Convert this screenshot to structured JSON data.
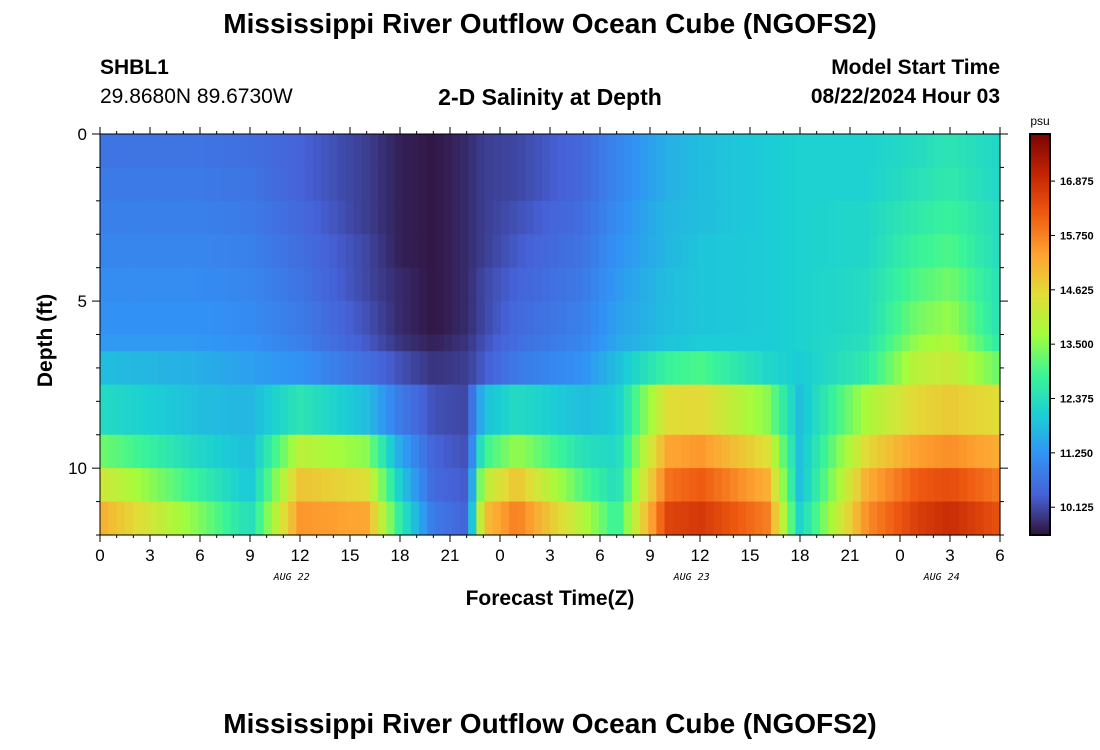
{
  "header": {
    "title": "Mississippi River Outflow Ocean Cube (NGOFS2)",
    "station": "SHBL1",
    "coords": "29.8680N  89.6730W",
    "subtitle": "2-D Salinity at Depth",
    "model_start_label": "Model Start Time",
    "model_start_value": "08/22/2024 Hour 03"
  },
  "footer": {
    "title": "Mississippi River Outflow Ocean Cube (NGOFS2)"
  },
  "chart_data": {
    "type": "heatmap",
    "title": "2-D Salinity at Depth",
    "xlabel": "Forecast Time(Z)",
    "ylabel": "Depth (ft)",
    "x_hours": [
      0,
      54
    ],
    "x_tick_labels": [
      "0",
      "3",
      "6",
      "9",
      "12",
      "15",
      "18",
      "21",
      "0",
      "3",
      "6",
      "9",
      "12",
      "15",
      "18",
      "21",
      "0",
      "3",
      "6"
    ],
    "date_labels": [
      {
        "label": "AUG 22",
        "hour": 11.5
      },
      {
        "label": "AUG 23",
        "hour": 35.5
      },
      {
        "label": "AUG 24",
        "hour": 50.5
      }
    ],
    "ylim": [
      0,
      12
    ],
    "y_ticks": [
      0,
      5,
      10
    ],
    "colorbar": {
      "unit": "psu",
      "range": [
        9.55,
        17.85
      ],
      "ticks": [
        "16.875",
        "15.750",
        "14.625",
        "13.500",
        "12.375",
        "11.250",
        "10.125"
      ]
    },
    "depth_layers_ft": [
      0.5,
      1.5,
      2.5,
      3.5,
      4.5,
      5.5,
      6.5,
      7,
      8.5,
      9.5,
      10.5,
      11.5
    ],
    "layer_breaks_ft": [
      0,
      1,
      2,
      3,
      4,
      5,
      6,
      6.5,
      7.5,
      9,
      10,
      11,
      12
    ],
    "time_keypoints_hours": [
      0,
      6,
      9,
      12,
      16,
      18,
      20,
      22,
      23,
      25,
      29,
      31,
      34,
      36,
      40,
      42,
      46,
      49,
      51,
      54
    ],
    "salinity_psu": [
      [
        10.7,
        10.7,
        10.6,
        10.4,
        10.0,
        9.7,
        9.6,
        9.8,
        10.0,
        10.1,
        10.5,
        11.0,
        11.6,
        11.8,
        12.0,
        12.1,
        12.1,
        12.3,
        12.5,
        12.2
      ],
      [
        10.8,
        10.8,
        10.7,
        10.4,
        10.0,
        9.7,
        9.6,
        9.8,
        10.0,
        10.1,
        10.5,
        11.0,
        11.6,
        11.8,
        12.0,
        12.1,
        12.1,
        12.4,
        12.6,
        12.2
      ],
      [
        10.9,
        10.9,
        10.8,
        10.5,
        10.0,
        9.7,
        9.6,
        9.8,
        10.0,
        10.2,
        10.6,
        11.1,
        11.7,
        11.8,
        12.0,
        12.1,
        12.2,
        12.6,
        12.8,
        12.3
      ],
      [
        11.0,
        11.0,
        10.9,
        10.6,
        10.1,
        9.7,
        9.6,
        9.8,
        10.0,
        10.3,
        10.7,
        11.2,
        11.7,
        11.9,
        12.0,
        12.1,
        12.2,
        12.8,
        13.0,
        12.3
      ],
      [
        11.1,
        11.1,
        11.0,
        10.7,
        10.1,
        9.8,
        9.6,
        9.8,
        10.1,
        10.4,
        10.8,
        11.3,
        11.8,
        11.9,
        12.0,
        12.1,
        12.3,
        13.0,
        13.3,
        12.4
      ],
      [
        11.2,
        11.2,
        11.1,
        10.8,
        10.2,
        9.8,
        9.6,
        9.8,
        10.1,
        10.5,
        10.9,
        11.4,
        11.8,
        11.9,
        12.0,
        12.1,
        12.3,
        13.3,
        13.6,
        12.4
      ],
      [
        11.3,
        11.3,
        11.2,
        10.9,
        10.3,
        9.9,
        9.7,
        9.9,
        10.2,
        10.6,
        11.0,
        11.5,
        11.9,
        12.0,
        12.0,
        12.1,
        12.4,
        13.6,
        13.9,
        12.6
      ],
      [
        11.8,
        11.6,
        11.4,
        11.2,
        10.6,
        10.2,
        9.9,
        10.0,
        10.3,
        10.8,
        11.2,
        11.8,
        12.8,
        13.0,
        12.2,
        12.0,
        12.6,
        14.0,
        14.2,
        13.2
      ],
      [
        12.3,
        11.8,
        11.7,
        12.5,
        11.8,
        10.8,
        10.2,
        10.1,
        11.8,
        12.3,
        11.8,
        12.0,
        14.5,
        14.6,
        13.5,
        11.8,
        13.8,
        14.6,
        14.8,
        14.5
      ],
      [
        13.3,
        12.2,
        11.8,
        14.0,
        13.5,
        11.5,
        10.4,
        10.2,
        12.8,
        13.6,
        12.4,
        12.2,
        15.3,
        15.5,
        14.5,
        11.8,
        14.6,
        15.4,
        15.6,
        15.2
      ],
      [
        14.3,
        12.7,
        11.9,
        14.9,
        14.5,
        12.0,
        10.5,
        10.3,
        14.0,
        14.9,
        13.0,
        12.3,
        15.9,
        16.2,
        15.2,
        11.8,
        15.2,
        16.2,
        16.4,
        15.8
      ],
      [
        15.2,
        13.4,
        12.3,
        15.5,
        15.3,
        12.6,
        10.8,
        10.4,
        14.9,
        15.8,
        13.9,
        12.7,
        16.5,
        16.7,
        15.8,
        12.1,
        15.6,
        16.6,
        16.9,
        16.3
      ]
    ]
  }
}
